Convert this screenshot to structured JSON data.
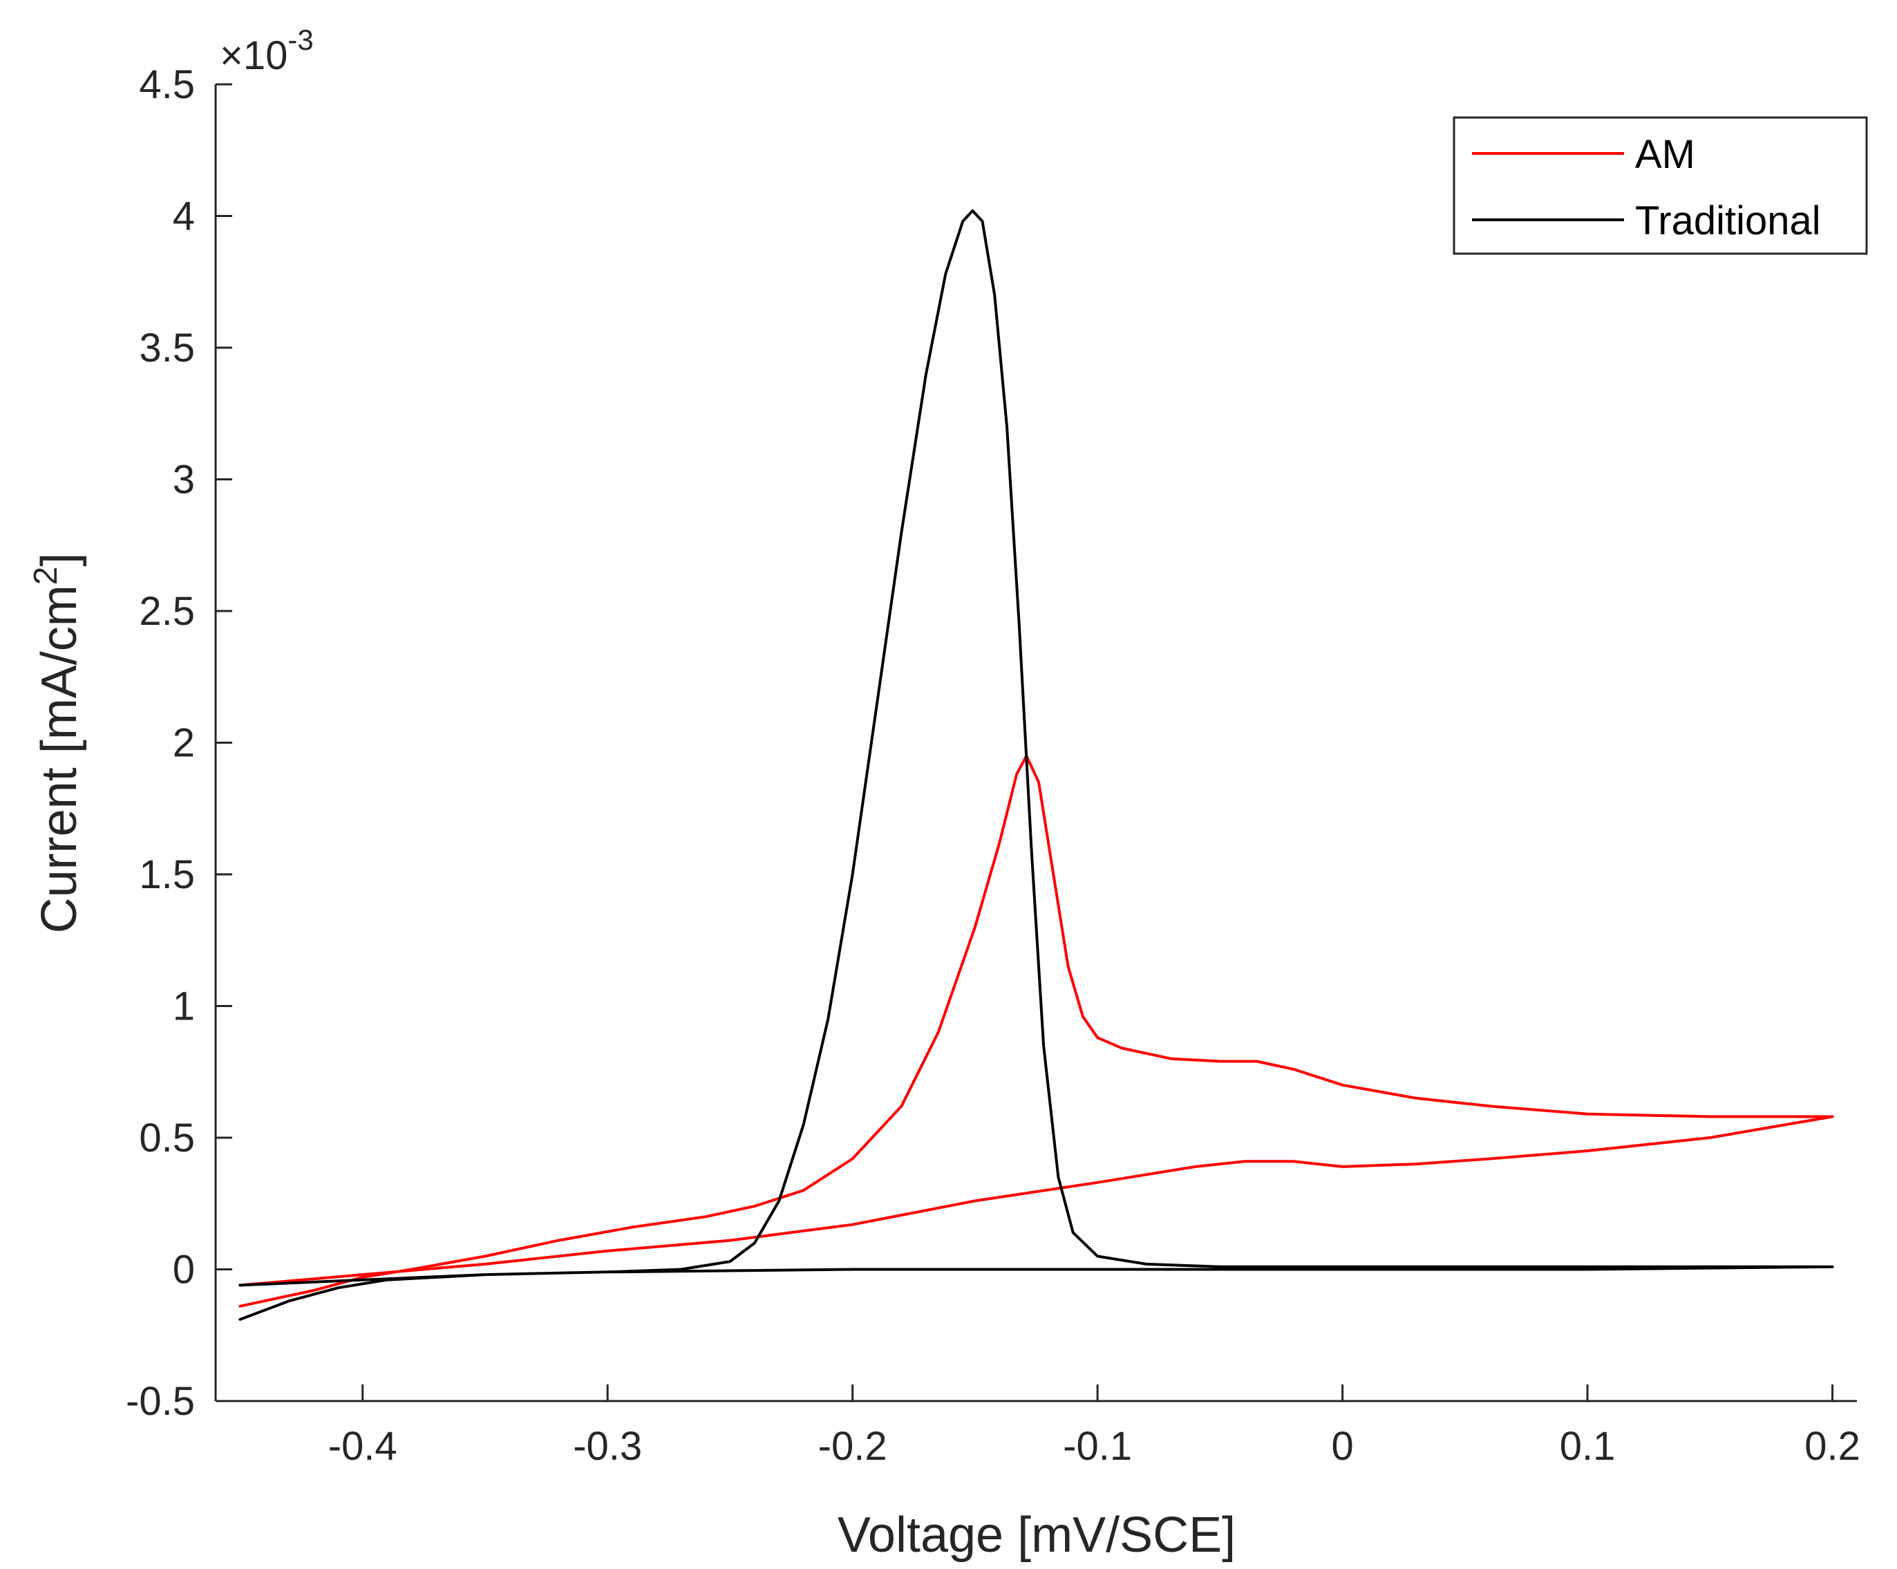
{
  "chart_data": {
    "type": "line",
    "title": "",
    "xlabel": "Voltage [mV/SCE]",
    "ylabel_main": "Current [mA/cm",
    "ylabel_sup": "2",
    "ylabel_close": "]",
    "xlim": [
      -0.46,
      0.21
    ],
    "ylim": [
      -0.5,
      4.5
    ],
    "xticks": [
      -0.4,
      -0.3,
      -0.2,
      -0.1,
      0,
      0.1,
      0.2
    ],
    "xtick_labels": [
      "-0.4",
      "-0.3",
      "-0.2",
      "-0.1",
      "0",
      "0.1",
      "0.2"
    ],
    "yticks": [
      -0.5,
      0,
      0.5,
      1,
      1.5,
      2,
      2.5,
      3,
      3.5,
      4,
      4.5
    ],
    "ytick_labels": [
      "-0.5",
      "0",
      "0.5",
      "1",
      "1.5",
      "2",
      "2.5",
      "3",
      "3.5",
      "4",
      "4.5"
    ],
    "y_exponent": {
      "prefix": "×10",
      "power": "-3"
    },
    "legend_position": "top-right",
    "series": [
      {
        "name": "AM",
        "color": "#ff0000",
        "points": [
          [
            -0.45,
            -0.14
          ],
          [
            -0.42,
            -0.08
          ],
          [
            -0.4,
            -0.03
          ],
          [
            -0.38,
            0.0
          ],
          [
            -0.35,
            0.05
          ],
          [
            -0.32,
            0.11
          ],
          [
            -0.29,
            0.16
          ],
          [
            -0.26,
            0.2
          ],
          [
            -0.24,
            0.24
          ],
          [
            -0.22,
            0.3
          ],
          [
            -0.2,
            0.42
          ],
          [
            -0.18,
            0.62
          ],
          [
            -0.165,
            0.9
          ],
          [
            -0.15,
            1.3
          ],
          [
            -0.14,
            1.62
          ],
          [
            -0.133,
            1.88
          ],
          [
            -0.129,
            1.95
          ],
          [
            -0.124,
            1.85
          ],
          [
            -0.118,
            1.5
          ],
          [
            -0.112,
            1.15
          ],
          [
            -0.106,
            0.96
          ],
          [
            -0.1,
            0.88
          ],
          [
            -0.09,
            0.84
          ],
          [
            -0.07,
            0.8
          ],
          [
            -0.05,
            0.79
          ],
          [
            -0.035,
            0.79
          ],
          [
            -0.02,
            0.76
          ],
          [
            0.0,
            0.7
          ],
          [
            0.03,
            0.65
          ],
          [
            0.06,
            0.62
          ],
          [
            0.1,
            0.59
          ],
          [
            0.15,
            0.58
          ],
          [
            0.2,
            0.58
          ],
          [
            0.15,
            0.5
          ],
          [
            0.1,
            0.45
          ],
          [
            0.06,
            0.42
          ],
          [
            0.03,
            0.4
          ],
          [
            0.0,
            0.39
          ],
          [
            -0.02,
            0.41
          ],
          [
            -0.04,
            0.41
          ],
          [
            -0.06,
            0.39
          ],
          [
            -0.1,
            0.33
          ],
          [
            -0.15,
            0.26
          ],
          [
            -0.2,
            0.17
          ],
          [
            -0.25,
            0.11
          ],
          [
            -0.3,
            0.07
          ],
          [
            -0.35,
            0.02
          ],
          [
            -0.4,
            -0.02
          ],
          [
            -0.45,
            -0.06
          ]
        ]
      },
      {
        "name": "Traditional",
        "color": "#000000",
        "points": [
          [
            -0.45,
            -0.19
          ],
          [
            -0.43,
            -0.12
          ],
          [
            -0.41,
            -0.07
          ],
          [
            -0.39,
            -0.04
          ],
          [
            -0.35,
            -0.02
          ],
          [
            -0.3,
            -0.01
          ],
          [
            -0.27,
            0.0
          ],
          [
            -0.25,
            0.03
          ],
          [
            -0.24,
            0.1
          ],
          [
            -0.23,
            0.26
          ],
          [
            -0.22,
            0.55
          ],
          [
            -0.21,
            0.95
          ],
          [
            -0.2,
            1.5
          ],
          [
            -0.19,
            2.15
          ],
          [
            -0.18,
            2.8
          ],
          [
            -0.17,
            3.4
          ],
          [
            -0.162,
            3.78
          ],
          [
            -0.155,
            3.98
          ],
          [
            -0.151,
            4.02
          ],
          [
            -0.147,
            3.98
          ],
          [
            -0.142,
            3.7
          ],
          [
            -0.137,
            3.2
          ],
          [
            -0.132,
            2.45
          ],
          [
            -0.127,
            1.6
          ],
          [
            -0.122,
            0.85
          ],
          [
            -0.116,
            0.35
          ],
          [
            -0.11,
            0.14
          ],
          [
            -0.1,
            0.05
          ],
          [
            -0.08,
            0.02
          ],
          [
            -0.05,
            0.01
          ],
          [
            0.0,
            0.01
          ],
          [
            0.1,
            0.01
          ],
          [
            0.2,
            0.01
          ],
          [
            0.1,
            0.0
          ],
          [
            0.0,
            0.0
          ],
          [
            -0.1,
            0.0
          ],
          [
            -0.2,
            0.0
          ],
          [
            -0.3,
            -0.01
          ],
          [
            -0.35,
            -0.02
          ],
          [
            -0.4,
            -0.04
          ],
          [
            -0.45,
            -0.06
          ]
        ]
      }
    ]
  }
}
